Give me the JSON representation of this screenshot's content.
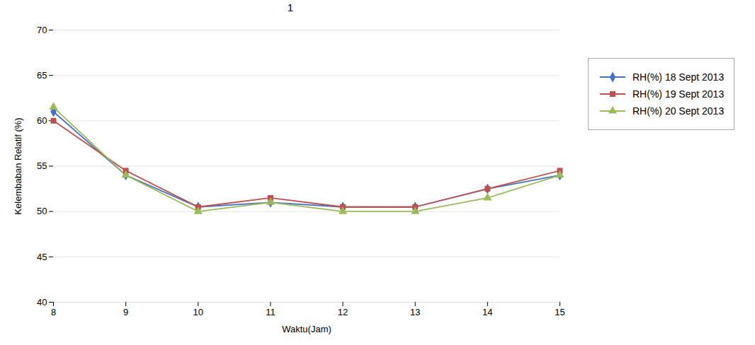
{
  "chart_data": {
    "type": "line",
    "annotation": "1",
    "x": [
      8,
      9,
      10,
      11,
      12,
      13,
      14,
      15
    ],
    "series": [
      {
        "name": "RH(%) 18 Sept 2013",
        "color": "#4472C4",
        "marker": "diamond",
        "values": [
          61,
          54,
          50.5,
          51,
          50.5,
          50.5,
          52.5,
          54
        ]
      },
      {
        "name": "RH(%) 19 Sept 2013",
        "color": "#C0504D",
        "marker": "square",
        "values": [
          60,
          54.5,
          50.5,
          51.5,
          50.5,
          50.5,
          52.5,
          54.5
        ]
      },
      {
        "name": "RH(%) 20 Sept 2013",
        "color": "#9BBB59",
        "marker": "triangle",
        "values": [
          61.5,
          54,
          50,
          51,
          50,
          50,
          51.5,
          54
        ]
      }
    ],
    "xlabel": "Waktu(Jam)",
    "ylabel": "Kelembaban Relatif (%)",
    "xlim": [
      8,
      15
    ],
    "xticks": [
      8,
      9,
      10,
      11,
      12,
      13,
      14,
      15
    ],
    "ylim": [
      40,
      70
    ],
    "yticks": [
      40,
      45,
      50,
      55,
      60,
      65,
      70
    ],
    "grid": "y",
    "legend": "right"
  }
}
